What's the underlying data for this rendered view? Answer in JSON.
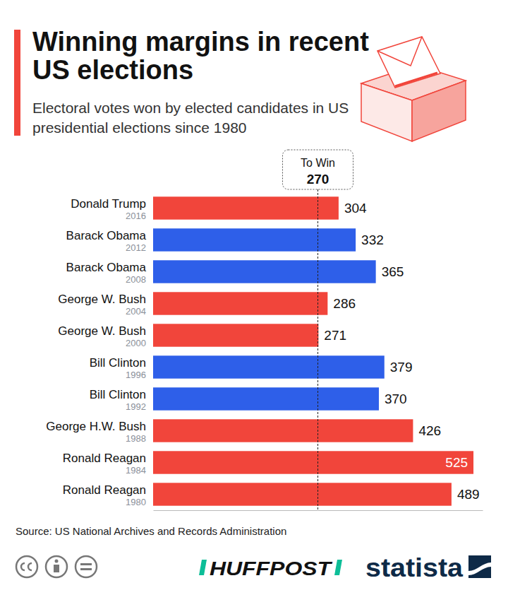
{
  "chart_data": {
    "type": "bar",
    "orientation": "horizontal",
    "title": "Winning margins in recent US elections",
    "subtitle": "Electoral votes won by elected candidates in US presidential elections since 1980",
    "categories": [
      "Donald Trump",
      "Barack Obama",
      "Barack Obama",
      "George W. Bush",
      "George W. Bush",
      "Bill Clinton",
      "Bill Clinton",
      "George H.W. Bush",
      "Ronald Reagan",
      "Ronald Reagan"
    ],
    "years": [
      "2016",
      "2012",
      "2008",
      "2004",
      "2000",
      "1996",
      "1992",
      "1988",
      "1984",
      "1980"
    ],
    "values": [
      304,
      332,
      365,
      286,
      271,
      379,
      370,
      426,
      525,
      489
    ],
    "colors": [
      "#f1453b",
      "#2e5fe9",
      "#2e5fe9",
      "#f1453b",
      "#f1453b",
      "#2e5fe9",
      "#2e5fe9",
      "#f1453b",
      "#f1453b",
      "#f1453b"
    ],
    "xlim": [
      0,
      540
    ],
    "tick_labels": "y",
    "grid": false,
    "data_labels": true,
    "reference_line": {
      "label": "To Win",
      "value": 270
    },
    "source": "Source: US National Archives and Records Administration",
    "credits": [
      "HUFFPOST",
      "statista"
    ]
  }
}
